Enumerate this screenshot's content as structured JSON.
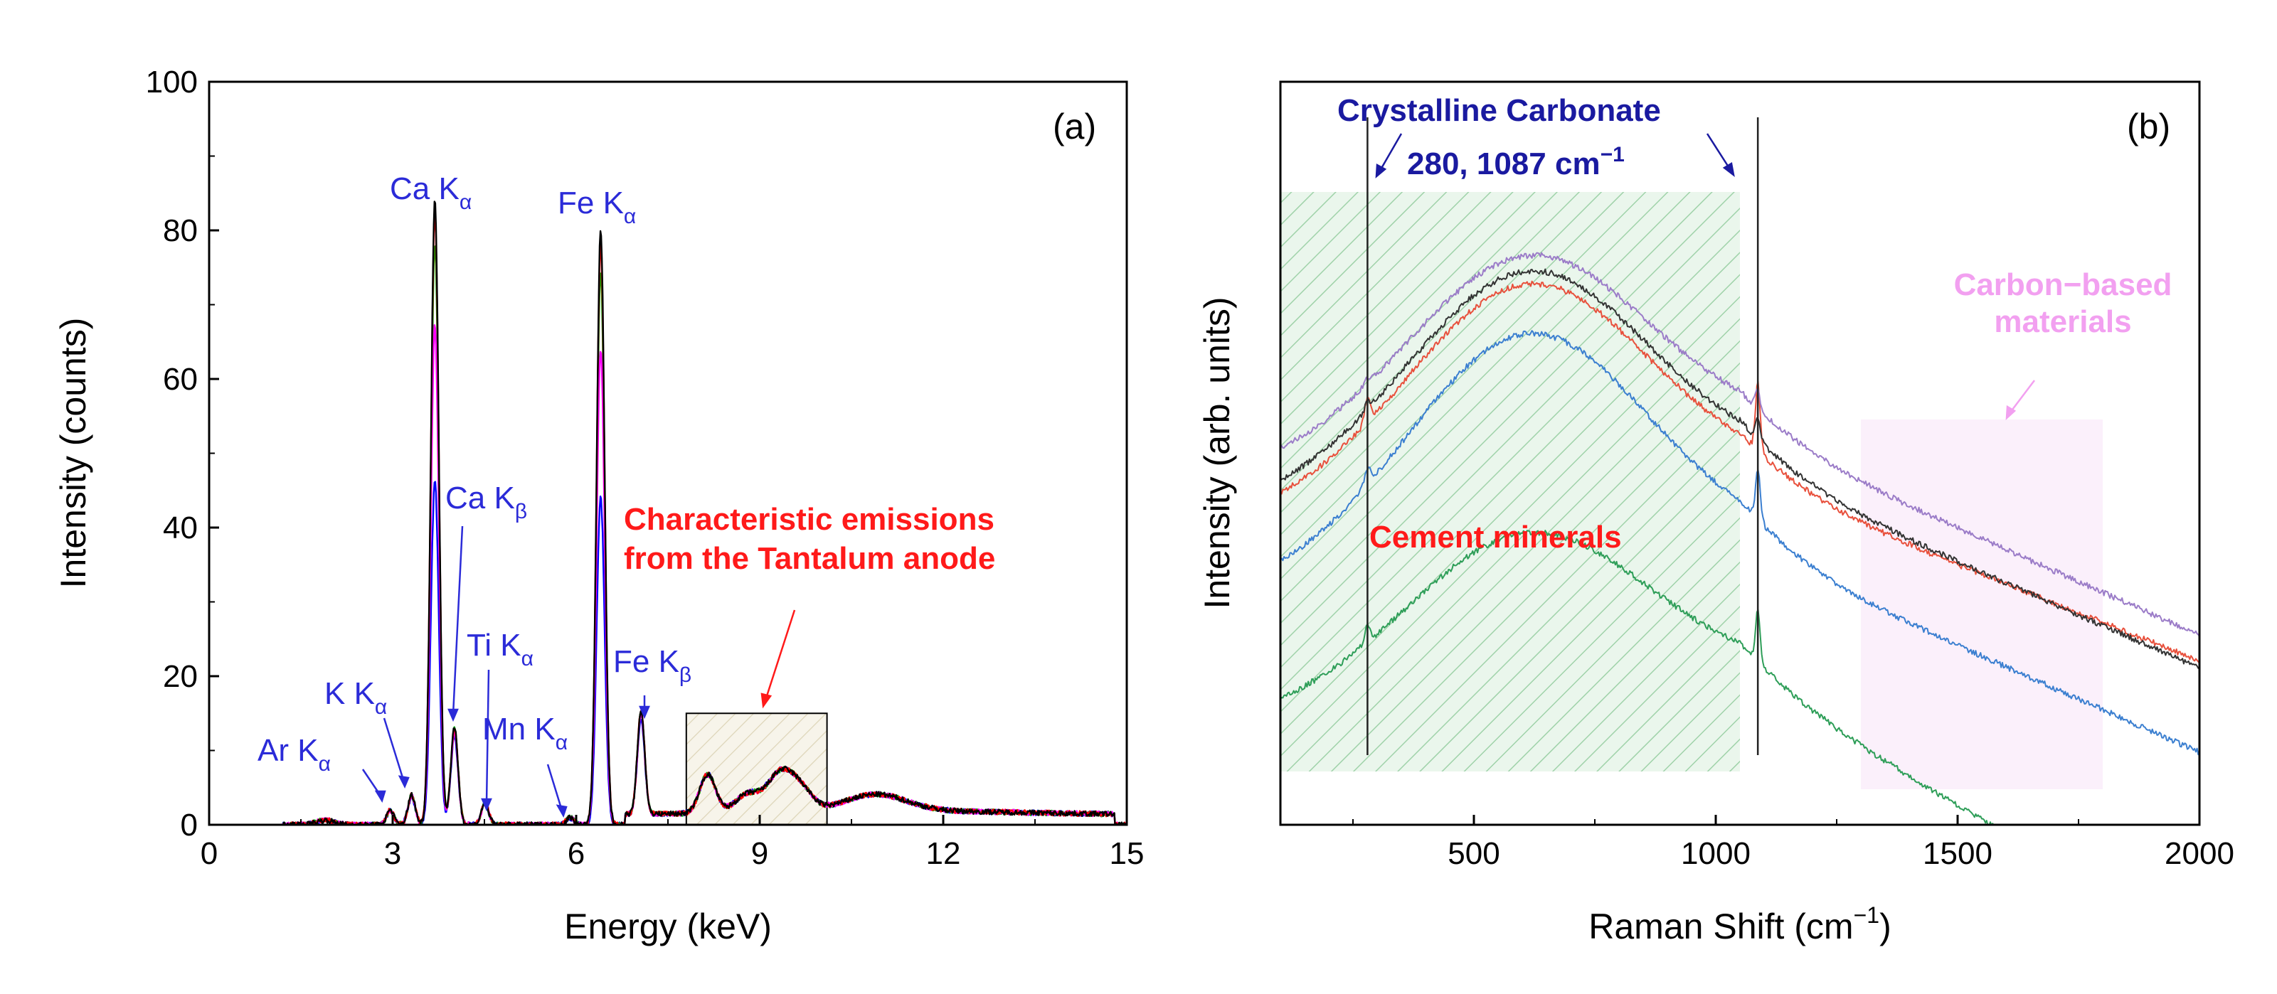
{
  "chart_data": [
    {
      "panel": "(a)",
      "type": "line",
      "xlabel": "Energy (keV)",
      "ylabel": "Intensity (counts)",
      "xlim": [
        0,
        15
      ],
      "ylim": [
        0,
        100
      ],
      "xticks": [
        "0",
        "3",
        "6",
        "9",
        "12",
        "15"
      ],
      "yticks": [
        "0",
        "20",
        "40",
        "60",
        "80",
        "100"
      ],
      "series": [
        {
          "name": "spectrum-1",
          "color": "#000000",
          "peak_scale": 1.0
        },
        {
          "name": "spectrum-2",
          "color": "#ff0000",
          "peak_scale": 0.98
        },
        {
          "name": "spectrum-3",
          "color": "#ff00ff",
          "peak_scale": 0.8
        },
        {
          "name": "spectrum-4",
          "color": "#00aa00",
          "peak_scale": 0.93
        },
        {
          "name": "spectrum-5",
          "color": "#0000ff",
          "peak_scale": 0.55
        }
      ],
      "peaks": [
        {
          "label": "Ar K",
          "sub": "α",
          "energy": 2.96,
          "height": 2
        },
        {
          "label": "K K",
          "sub": "α",
          "energy": 3.31,
          "height": 4
        },
        {
          "label": "Ca K",
          "sub": "α",
          "energy": 3.69,
          "height": 84
        },
        {
          "label": "Ca K",
          "sub": "β",
          "energy": 4.01,
          "height": 13
        },
        {
          "label": "Ti K",
          "sub": "α",
          "energy": 4.51,
          "height": 3
        },
        {
          "label": "Mn K",
          "sub": "α",
          "energy": 5.9,
          "height": 1
        },
        {
          "label": "Fe K",
          "sub": "α",
          "energy": 6.4,
          "height": 80
        },
        {
          "label": "Fe K",
          "sub": "β",
          "energy": 7.06,
          "height": 14
        }
      ],
      "tantalum_box": {
        "x_range": [
          7.8,
          10.1
        ],
        "y_range": [
          0,
          15
        ]
      },
      "annotation": [
        "Characteristic emissions",
        "from the Tantalum anode"
      ]
    },
    {
      "panel": "(b)",
      "type": "line",
      "xlabel": "Raman Shift (cm",
      "xlabel_sup": "−1",
      "xlabel_end": ")",
      "ylabel": "Intensity (arb. units)",
      "xlim": [
        100,
        2000
      ],
      "xticks": [
        "500",
        "1000",
        "1500",
        "2000"
      ],
      "vlines": [
        280,
        1087
      ],
      "series": [
        {
          "name": "spectrum-red",
          "color": "#e8503c"
        },
        {
          "name": "spectrum-purple",
          "color": "#9b7cc8"
        },
        {
          "name": "spectrum-black",
          "color": "#333333"
        },
        {
          "name": "spectrum-blue",
          "color": "#3b7fd0"
        },
        {
          "name": "spectrum-green",
          "color": "#2e9e58"
        }
      ],
      "regions": [
        {
          "name": "Cement minerals",
          "x_range": [
            100,
            1050
          ],
          "color": "#2e9e58"
        },
        {
          "name": "Carbon−based materials",
          "x_range": [
            1300,
            1800
          ],
          "color": "#f2a0f0"
        }
      ],
      "annotations": {
        "carbonate_title": "Crystalline Carbonate",
        "carbonate_peaks": "280, 1087 cm",
        "carbonate_sup": "−1",
        "cement": "Cement minerals",
        "carbon_line1": "Carbon−based",
        "carbon_line2": "materials"
      }
    }
  ],
  "labels": {
    "panel_a": "(a)",
    "panel_b": "(b)"
  }
}
